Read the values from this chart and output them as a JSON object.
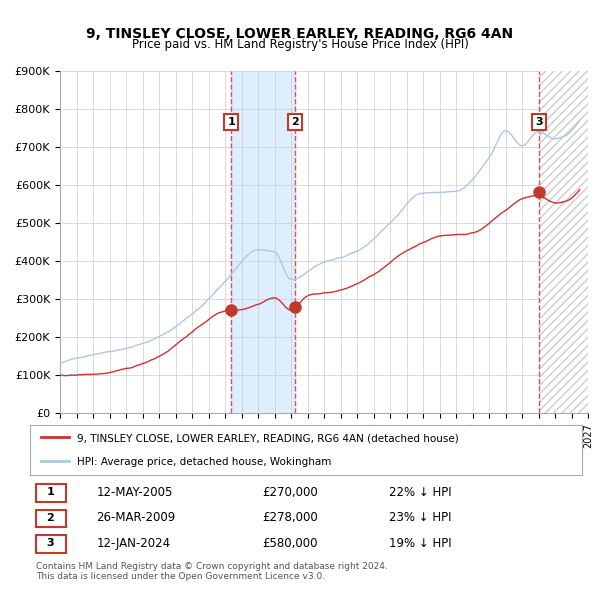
{
  "title": "9, TINSLEY CLOSE, LOWER EARLEY, READING, RG6 4AN",
  "subtitle": "Price paid vs. HM Land Registry's House Price Index (HPI)",
  "xlabel": "",
  "ylabel": "",
  "ylim": [
    0,
    900000
  ],
  "yticks": [
    0,
    100000,
    200000,
    300000,
    400000,
    500000,
    600000,
    700000,
    800000,
    900000
  ],
  "ytick_labels": [
    "£0",
    "£100K",
    "£200K",
    "£300K",
    "£400K",
    "£500K",
    "£600K",
    "£700K",
    "£800K",
    "£900K"
  ],
  "hpi_color": "#aec6e8",
  "price_color": "#d03030",
  "sale_marker_color": "#c0392b",
  "annotation_box_color": "#c0392b",
  "vline_color": "#e05050",
  "shading_color": "#ddeeff",
  "hatch_color": "#cccccc",
  "grid_color": "#cccccc",
  "sale1_x": 2005.37,
  "sale1_y": 270000,
  "sale1_label": "12-MAY-2005",
  "sale1_price": "£270,000",
  "sale1_hpi": "22% ↓ HPI",
  "sale2_x": 2009.23,
  "sale2_y": 278000,
  "sale2_label": "26-MAR-2009",
  "sale2_price": "£278,000",
  "sale2_hpi": "23% ↓ HPI",
  "sale3_x": 2024.04,
  "sale3_y": 580000,
  "sale3_label": "12-JAN-2024",
  "sale3_price": "£580,000",
  "sale3_hpi": "19% ↓ HPI",
  "legend_label1": "9, TINSLEY CLOSE, LOWER EARLEY, READING, RG6 4AN (detached house)",
  "legend_label2": "HPI: Average price, detached house, Wokingham",
  "footnote": "Contains HM Land Registry data © Crown copyright and database right 2024.\nThis data is licensed under the Open Government Licence v3.0.",
  "xmin": 1995.0,
  "xmax": 2027.0
}
